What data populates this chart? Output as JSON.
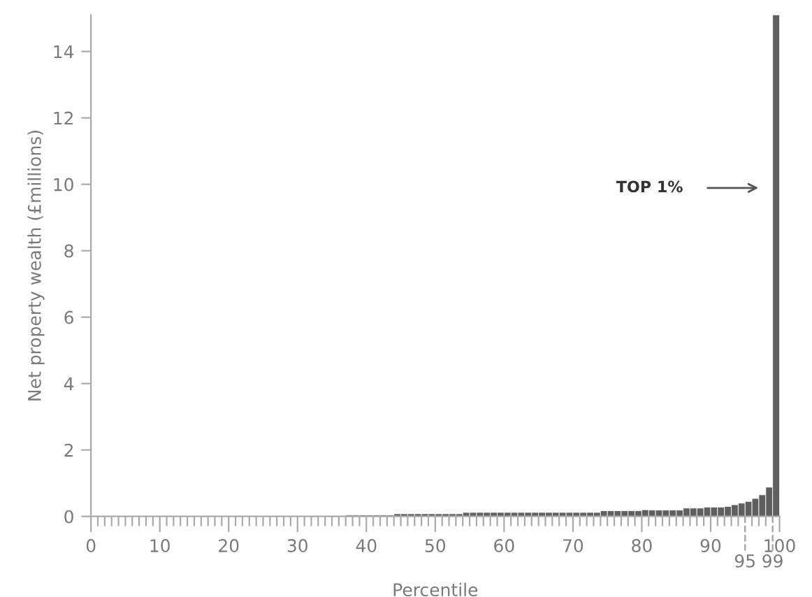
{
  "chart_data": {
    "type": "bar",
    "xlabel": "Percentile",
    "ylabel": "Net property wealth (£millions)",
    "color": "#5f5f5f",
    "x": [
      0.5,
      1.5,
      2.5,
      3.5,
      4.5,
      5.5,
      6.5,
      7.5,
      8.5,
      9.5,
      10.5,
      11.5,
      12.5,
      13.5,
      14.5,
      15.5,
      16.5,
      17.5,
      18.5,
      19.5,
      20.5,
      21.5,
      22.5,
      23.5,
      24.5,
      25.5,
      26.5,
      27.5,
      28.5,
      29.5,
      30.5,
      31.5,
      32.5,
      33.5,
      34.5,
      35.5,
      36.5,
      37.5,
      38.5,
      39.5,
      40.5,
      41.5,
      42.5,
      43.5,
      44.5,
      45.5,
      46.5,
      47.5,
      48.5,
      49.5,
      50.5,
      51.5,
      52.5,
      53.5,
      54.5,
      55.5,
      56.5,
      57.5,
      58.5,
      59.5,
      60.5,
      61.5,
      62.5,
      63.5,
      64.5,
      65.5,
      66.5,
      67.5,
      68.5,
      69.5,
      70.5,
      71.5,
      72.5,
      73.5,
      74.5,
      75.5,
      76.5,
      77.5,
      78.5,
      79.5,
      80.5,
      81.5,
      82.5,
      83.5,
      84.5,
      85.5,
      86.5,
      87.5,
      88.5,
      89.5,
      90.5,
      91.5,
      92.5,
      93.5,
      94.5,
      95.5,
      96.5,
      97.5,
      98.5,
      99.5
    ],
    "values": [
      0,
      0,
      0,
      0,
      0,
      0,
      0,
      0,
      0,
      0,
      0,
      0,
      0,
      0,
      0,
      0,
      0,
      0,
      0,
      0,
      0,
      0,
      0,
      0,
      0,
      0,
      0,
      0,
      0,
      0,
      0,
      0,
      0,
      0,
      0,
      0,
      0,
      0.04,
      0.04,
      0.04,
      0.04,
      0.04,
      0.04,
      0.04,
      0.08,
      0.08,
      0.08,
      0.08,
      0.08,
      0.08,
      0.08,
      0.08,
      0.08,
      0.08,
      0.12,
      0.12,
      0.12,
      0.12,
      0.12,
      0.12,
      0.12,
      0.12,
      0.12,
      0.12,
      0.12,
      0.12,
      0.12,
      0.12,
      0.12,
      0.12,
      0.12,
      0.12,
      0.12,
      0.12,
      0.17,
      0.17,
      0.17,
      0.17,
      0.17,
      0.17,
      0.2,
      0.19,
      0.19,
      0.19,
      0.19,
      0.19,
      0.25,
      0.25,
      0.25,
      0.28,
      0.28,
      0.28,
      0.3,
      0.35,
      0.4,
      0.45,
      0.54,
      0.65,
      0.88,
      15.1
    ],
    "xlim": [
      0,
      100
    ],
    "ylim": [
      0,
      15.1
    ],
    "xticks": [
      0,
      {
        "value": 1,
        "label": null
      },
      {
        "value": 2,
        "label": null
      },
      {
        "value": 3,
        "label": null
      },
      {
        "value": 4,
        "label": null
      },
      {
        "value": 5,
        "label": null
      },
      {
        "value": 6,
        "label": null
      },
      {
        "value": 7,
        "label": null
      },
      {
        "value": 8,
        "label": null
      },
      {
        "value": 9,
        "label": null
      },
      10,
      {
        "value": 11,
        "label": null
      },
      {
        "value": 12,
        "label": null
      },
      {
        "value": 13,
        "label": null
      },
      {
        "value": 14,
        "label": null
      },
      {
        "value": 15,
        "label": null
      },
      {
        "value": 16,
        "label": null
      },
      {
        "value": 17,
        "label": null
      },
      {
        "value": 18,
        "label": null
      },
      {
        "value": 19,
        "label": null
      },
      20,
      {
        "value": 21,
        "label": null
      },
      {
        "value": 22,
        "label": null
      },
      {
        "value": 23,
        "label": null
      },
      {
        "value": 24,
        "label": null
      },
      {
        "value": 25,
        "label": null
      },
      {
        "value": 26,
        "label": null
      },
      {
        "value": 27,
        "label": null
      },
      {
        "value": 28,
        "label": null
      },
      {
        "value": 29,
        "label": null
      },
      30,
      {
        "value": 31,
        "label": null
      },
      {
        "value": 32,
        "label": null
      },
      {
        "value": 33,
        "label": null
      },
      {
        "value": 34,
        "label": null
      },
      {
        "value": 35,
        "label": null
      },
      {
        "value": 36,
        "label": null
      },
      {
        "value": 37,
        "label": null
      },
      {
        "value": 38,
        "label": null
      },
      {
        "value": 39,
        "label": null
      },
      40,
      {
        "value": 41,
        "label": null
      },
      {
        "value": 42,
        "label": null
      },
      {
        "value": 43,
        "label": null
      },
      {
        "value": 44,
        "label": null
      },
      {
        "value": 45,
        "label": null
      },
      {
        "value": 46,
        "label": null
      },
      {
        "value": 47,
        "label": null
      },
      {
        "value": 48,
        "label": null
      },
      {
        "value": 49,
        "label": null
      },
      50,
      {
        "value": 51,
        "label": null
      },
      {
        "value": 52,
        "label": null
      },
      {
        "value": 53,
        "label": null
      },
      {
        "value": 54,
        "label": null
      },
      {
        "value": 55,
        "label": null
      },
      {
        "value": 56,
        "label": null
      },
      {
        "value": 57,
        "label": null
      },
      {
        "value": 58,
        "label": null
      },
      {
        "value": 59,
        "label": null
      },
      60,
      {
        "value": 61,
        "label": null
      },
      {
        "value": 62,
        "label": null
      },
      {
        "value": 63,
        "label": null
      },
      {
        "value": 64,
        "label": null
      },
      {
        "value": 65,
        "label": null
      },
      {
        "value": 66,
        "label": null
      },
      {
        "value": 67,
        "label": null
      },
      {
        "value": 68,
        "label": null
      },
      {
        "value": 69,
        "label": null
      },
      70,
      {
        "value": 71,
        "label": null
      },
      {
        "value": 72,
        "label": null
      },
      {
        "value": 73,
        "label": null
      },
      {
        "value": 74,
        "label": null
      },
      {
        "value": 75,
        "label": null
      },
      {
        "value": 76,
        "label": null
      },
      {
        "value": 77,
        "label": null
      },
      {
        "value": 78,
        "label": null
      },
      {
        "value": 79,
        "label": null
      },
      80,
      {
        "value": 81,
        "label": null
      },
      {
        "value": 82,
        "label": null
      },
      {
        "value": 83,
        "label": null
      },
      {
        "value": 84,
        "label": null
      },
      {
        "value": 85,
        "label": null
      },
      {
        "value": 86,
        "label": null
      },
      {
        "value": 87,
        "label": null
      },
      {
        "value": 88,
        "label": null
      },
      {
        "value": 89,
        "label": null
      },
      90,
      {
        "value": 91,
        "label": null
      },
      {
        "value": 92,
        "label": null
      },
      {
        "value": 93,
        "label": null
      },
      {
        "value": 94,
        "label": null
      },
      {
        "value": 96,
        "label": null
      },
      {
        "value": 97,
        "label": null
      },
      {
        "value": 98,
        "label": null
      },
      100
    ],
    "yticks": [
      0,
      2,
      4,
      6,
      8,
      10,
      12,
      14
    ],
    "ref_lines": [
      {
        "axis": "x",
        "value": 95,
        "label": "95",
        "line_style": "dashed",
        "color": "#aaaaaa"
      },
      {
        "axis": "x",
        "value": 99,
        "label": "99",
        "line_style": "dashed",
        "color": "#aaaaaa"
      }
    ],
    "annotations": [
      "TOP 1%"
    ],
    "grid": false
  }
}
